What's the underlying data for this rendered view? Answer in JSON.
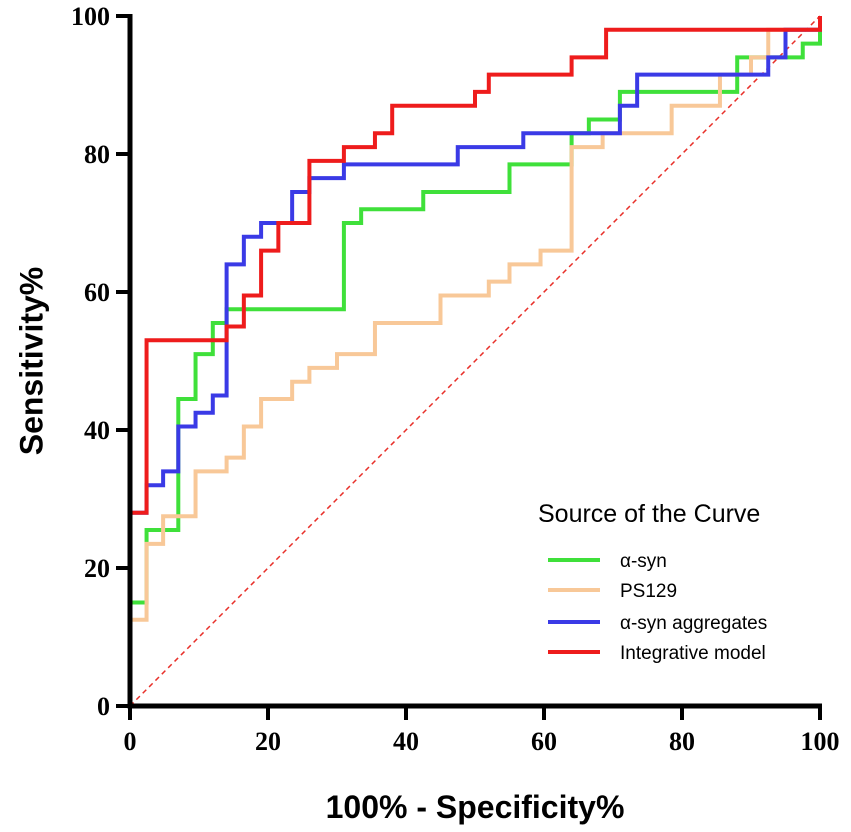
{
  "chart_data": {
    "type": "line",
    "xlabel": "100% - Specificity%",
    "ylabel": "Sensitivity%",
    "legend_title": "Source of the Curve",
    "xlim": [
      0,
      100
    ],
    "ylim": [
      0,
      100
    ],
    "xticks": [
      0,
      20,
      40,
      60,
      80,
      100
    ],
    "yticks": [
      0,
      20,
      40,
      60,
      80,
      100
    ],
    "legend": "lower right",
    "reference_line_color": "#e8302a",
    "series": [
      {
        "name": "α-syn",
        "color": "#3fe03a",
        "x": [
          0,
          0,
          2.4,
          2.4,
          7,
          7,
          9.5,
          9.5,
          12,
          12,
          14,
          14,
          31,
          31,
          33.5,
          33.5,
          42.5,
          42.5,
          55,
          55,
          64,
          64,
          66.5,
          66.5,
          71,
          71,
          88,
          88,
          97.5,
          97.5,
          100,
          100
        ],
        "values": [
          0,
          15,
          15,
          25.5,
          25.5,
          44.5,
          44.5,
          51,
          51,
          55.5,
          55.5,
          57.5,
          57.5,
          70,
          70,
          72,
          72,
          74.5,
          74.5,
          78.5,
          78.5,
          83,
          83,
          85,
          85,
          89,
          89,
          94,
          94,
          96,
          96,
          100
        ]
      },
      {
        "name": "PS129",
        "color": "#f8c898",
        "x": [
          0,
          0,
          2.4,
          2.4,
          4.8,
          4.8,
          9.5,
          9.5,
          14,
          14,
          16.5,
          16.5,
          19,
          19,
          23.5,
          23.5,
          26,
          26,
          30,
          30,
          35.5,
          35.5,
          45,
          45,
          52,
          52,
          55,
          55,
          59.5,
          59.5,
          64,
          64,
          68.5,
          68.5,
          78.5,
          78.5,
          85.5,
          85.5,
          90,
          90,
          92.5,
          92.5,
          100
        ],
        "values": [
          0,
          12.5,
          12.5,
          23.5,
          23.5,
          27.5,
          27.5,
          34,
          34,
          36,
          36,
          40.5,
          40.5,
          44.5,
          44.5,
          47,
          47,
          49,
          49,
          51,
          51,
          55.5,
          55.5,
          59.5,
          59.5,
          61.5,
          61.5,
          64,
          64,
          66,
          66,
          81,
          81,
          83,
          83,
          87,
          87,
          91.5,
          91.5,
          94,
          94,
          98,
          98
        ]
      },
      {
        "name": "α-syn aggregates",
        "color": "#3a3ae6",
        "x": [
          0,
          0,
          2.4,
          2.4,
          4.8,
          4.8,
          7,
          7,
          9.5,
          9.5,
          12,
          12,
          14,
          14,
          16.5,
          16.5,
          19,
          19,
          23.5,
          23.5,
          26,
          26,
          31,
          31,
          47.5,
          47.5,
          57,
          57,
          71,
          71,
          73.5,
          73.5,
          92.5,
          92.5,
          95,
          95,
          100,
          100
        ],
        "values": [
          0,
          28,
          28,
          32,
          32,
          34,
          34,
          40.5,
          40.5,
          42.5,
          42.5,
          45,
          45,
          64,
          64,
          68,
          68,
          70,
          70,
          74.5,
          74.5,
          76.5,
          76.5,
          78.5,
          78.5,
          81,
          81,
          83,
          83,
          87,
          87,
          91.5,
          91.5,
          94,
          94,
          98,
          98,
          100
        ]
      },
      {
        "name": "Integrative model",
        "color": "#ee1c1c",
        "x": [
          0,
          0,
          2.4,
          2.4,
          14,
          14,
          16.5,
          16.5,
          19,
          19,
          21.5,
          21.5,
          26,
          26,
          31,
          31,
          35.5,
          35.5,
          38,
          38,
          50,
          50,
          52,
          52,
          64,
          64,
          69,
          69,
          100,
          100
        ],
        "values": [
          0,
          28,
          28,
          53,
          53,
          55,
          55,
          59.5,
          59.5,
          66,
          66,
          70,
          70,
          79,
          79,
          81,
          81,
          83,
          83,
          87,
          87,
          89,
          89,
          91.5,
          91.5,
          94,
          94,
          98,
          98,
          100
        ]
      }
    ]
  }
}
